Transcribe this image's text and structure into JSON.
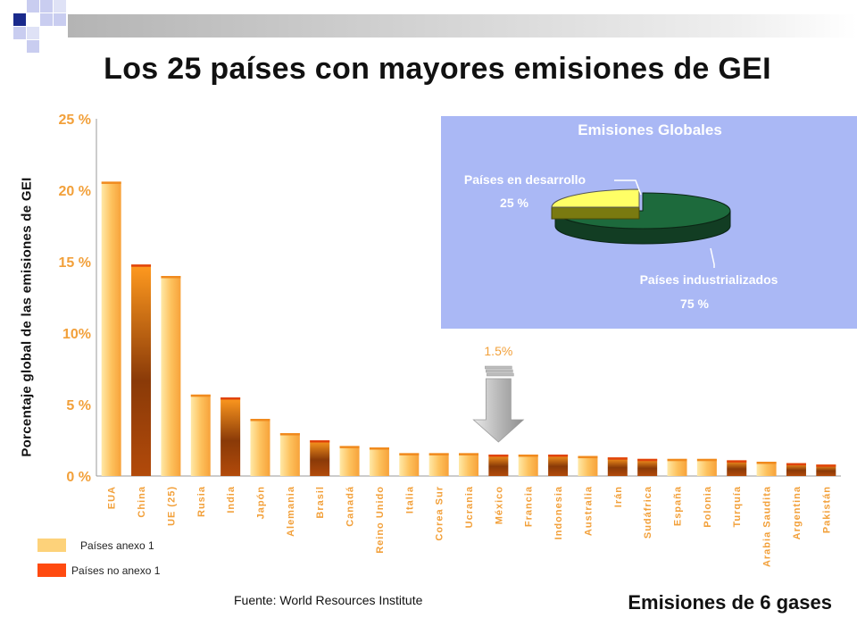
{
  "title": "Los 25 países con mayores emisiones de GEI",
  "source": "Fuente:  World Resources Institute",
  "footer": "Emisiones de 6 gases",
  "legend": [
    {
      "label": "Países anexo 1",
      "color": "#fdd27a"
    },
    {
      "label": "Países no anexo 1",
      "color": "#ff4a10"
    }
  ],
  "callout_label": "1.5%",
  "colors": {
    "annex1_light": "#ffe9a8",
    "annex1_dark": "#f7a23a",
    "nonannex_light": "#ff9a1f",
    "nonannex_dark": "#8a3a08",
    "axis_label_orange": "#f2a03a",
    "inset_background": "#aab8f5",
    "pie_dark_green": "#1d6a3c",
    "pie_yellow": "#ffff66"
  },
  "chart_data": [
    {
      "type": "bar",
      "ylabel": "Porcentaje global de las emisiones de GEI",
      "ylim": [
        0,
        25
      ],
      "yticks": [
        "0 %",
        "5 %",
        "10%",
        "15 %",
        "20 %",
        "25 %"
      ],
      "grid": false,
      "categories": [
        "EUA",
        "China",
        "UE (25)",
        "Rusia",
        "India",
        "Japón",
        "Alemania",
        "Brasil",
        "Canadá",
        "Reino Unido",
        "Italia",
        "Corea Sur",
        "Ucrania",
        "México",
        "Francia",
        "Indonesia",
        "Australia",
        "Irán",
        "Sudáfrica",
        "España",
        "Polonia",
        "Turquía",
        "Arabia Saudita",
        "Argentina",
        "Pakistán"
      ],
      "values": [
        20.6,
        14.8,
        14.0,
        5.7,
        5.5,
        4.0,
        3.0,
        2.5,
        2.1,
        2.0,
        1.6,
        1.6,
        1.6,
        1.5,
        1.5,
        1.5,
        1.4,
        1.3,
        1.2,
        1.2,
        1.2,
        1.1,
        1.0,
        0.9,
        0.8
      ],
      "groups": [
        "Países anexo 1",
        "Países no anexo 1",
        "Países anexo 1",
        "Países anexo 1",
        "Países no anexo 1",
        "Países anexo 1",
        "Países anexo 1",
        "Países no anexo 1",
        "Países anexo 1",
        "Países anexo 1",
        "Países anexo 1",
        "Países anexo 1",
        "Países anexo 1",
        "Países no anexo 1",
        "Países anexo 1",
        "Países no anexo 1",
        "Países anexo 1",
        "Países no anexo 1",
        "Países no anexo 1",
        "Países anexo 1",
        "Países anexo 1",
        "Países no anexo 1",
        "Países anexo 1",
        "Países no anexo 1",
        "Países no anexo 1"
      ]
    },
    {
      "type": "pie",
      "title": "Emisiones Globales",
      "slices": [
        {
          "label": "Países en desarrollo",
          "value_label": "25 %",
          "value": 25
        },
        {
          "label": "Países industrializados",
          "value_label": "75 %",
          "value": 75
        }
      ]
    }
  ]
}
